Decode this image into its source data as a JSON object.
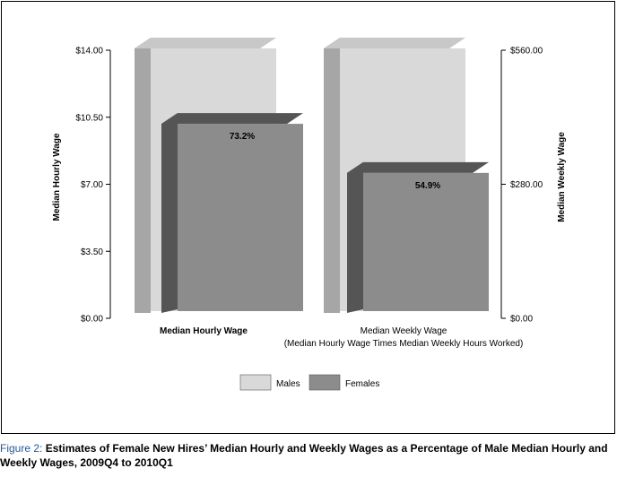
{
  "chart_data": {
    "type": "bar",
    "categories": [
      "Median Hourly Wage",
      "Median Weekly Wage"
    ],
    "category_sublabels": [
      "",
      "(Median Hourly Wage Times Median Weekly Hours Worked)"
    ],
    "series": [
      {
        "name": "Males",
        "values": [
          14.0,
          560.0
        ],
        "color": "#d9d9d9"
      },
      {
        "name": "Females",
        "values": [
          10.25,
          307.44
        ],
        "color": "#8c8c8c"
      }
    ],
    "data_labels": [
      "73.2%",
      "54.9%"
    ],
    "left_axis": {
      "title": "Median Hourly Wage",
      "range": [
        0,
        14
      ],
      "ticks": [
        "$0.00",
        "$3.50",
        "$7.00",
        "$10.50",
        "$14.00"
      ],
      "tick_values": [
        0,
        3.5,
        7,
        10.5,
        14
      ]
    },
    "right_axis": {
      "title": "Median Weekly Wage",
      "range": [
        0,
        560
      ],
      "ticks": [
        "$0.00",
        "$280.00",
        "$560.00"
      ],
      "tick_values": [
        0,
        280,
        560
      ]
    },
    "legend": {
      "position": "bottom-center",
      "entries": [
        "Males",
        "Females"
      ]
    },
    "grid": false
  },
  "caption": {
    "prefix": "Figure 2:",
    "text": "Estimates of Female New Hires’ Median Hourly and Weekly Wages as a Percentage of Male Median Hourly and Weekly Wages, 2009Q4 to 2010Q1"
  }
}
